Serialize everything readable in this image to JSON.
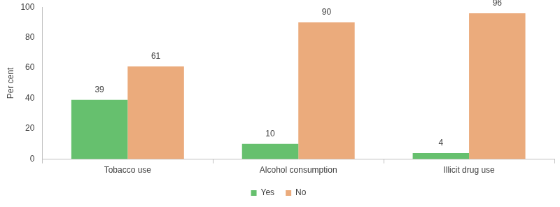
{
  "chart_data": {
    "type": "bar",
    "categories": [
      "Tobacco use",
      "Alcohol consumption",
      "Illicit drug use"
    ],
    "series": [
      {
        "name": "Yes",
        "color": "#66c06e",
        "values": [
          39,
          10,
          4
        ]
      },
      {
        "name": "No",
        "color": "#ebab7c",
        "values": [
          61,
          90,
          96
        ]
      }
    ],
    "ylabel": "Per cent",
    "ylim": [
      0,
      100
    ],
    "yticks": [
      0,
      20,
      40,
      60,
      80,
      100
    ],
    "grid": false,
    "legend": "bottom",
    "data_labels": true
  }
}
